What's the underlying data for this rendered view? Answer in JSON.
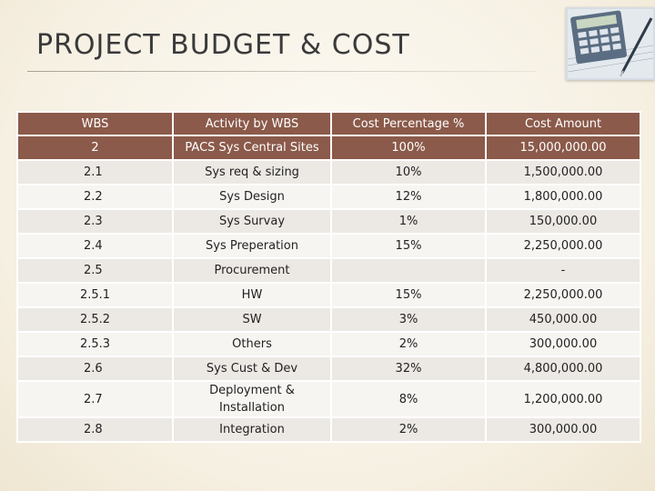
{
  "slide": {
    "title": "PROJECT BUDGET & COST",
    "corner_image_icon": "calculator-icon"
  },
  "table": {
    "headers": [
      "WBS",
      "Activity by WBS",
      "Cost Percentage %",
      "Cost Amount"
    ],
    "rows": [
      {
        "wbs": "2",
        "activity": "PACS Sys Central Sites",
        "percent": "100%",
        "amount": "15,000,000.00"
      },
      {
        "wbs": "2.1",
        "activity": "Sys req & sizing",
        "percent": "10%",
        "amount": "1,500,000.00"
      },
      {
        "wbs": "2.2",
        "activity": "Sys Design",
        "percent": "12%",
        "amount": "1,800,000.00"
      },
      {
        "wbs": "2.3",
        "activity": "Sys Survay",
        "percent": "1%",
        "amount": "150,000.00"
      },
      {
        "wbs": "2.4",
        "activity": "Sys Preperation",
        "percent": "15%",
        "amount": "2,250,000.00"
      },
      {
        "wbs": "2.5",
        "activity": "Procurement",
        "percent": "",
        "amount": "-"
      },
      {
        "wbs": "2.5.1",
        "activity": "HW",
        "percent": "15%",
        "amount": "2,250,000.00"
      },
      {
        "wbs": "2.5.2",
        "activity": "SW",
        "percent": "3%",
        "amount": "450,000.00"
      },
      {
        "wbs": "2.5.3",
        "activity": "Others",
        "percent": "2%",
        "amount": "300,000.00"
      },
      {
        "wbs": "2.6",
        "activity": "Sys Cust & Dev",
        "percent": "32%",
        "amount": "4,800,000.00"
      },
      {
        "wbs": "2.7",
        "activity": "Deployment & Installation",
        "percent": "8%",
        "amount": "1,200,000.00"
      },
      {
        "wbs": "2.8",
        "activity": "Integration",
        "percent": "2%",
        "amount": "300,000.00"
      }
    ]
  }
}
